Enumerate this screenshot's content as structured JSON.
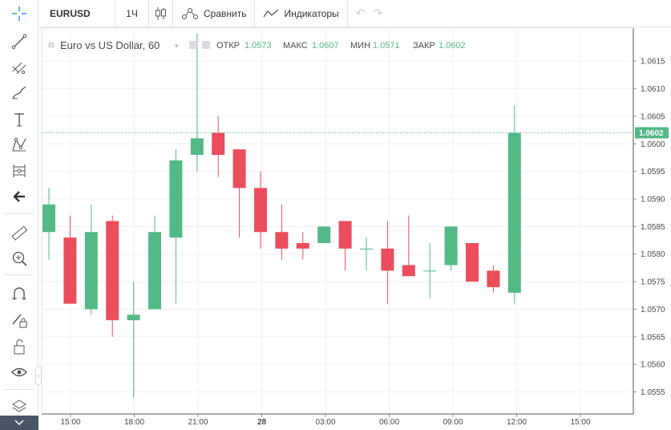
{
  "toolbar": {
    "symbol": "EURUSD",
    "interval": "1Ч",
    "compare_label": "Сравнить",
    "indicators_label": "Индикаторы"
  },
  "sidebar": {
    "tools": [
      "crosshair-icon",
      "trend-line-icon",
      "fib-icon",
      "brush-icon",
      "text-icon",
      "pattern-icon",
      "prediction-icon",
      "back-arrow-icon",
      "ruler-icon",
      "zoom-in-icon",
      "magnet-icon",
      "lock-drawing-icon",
      "unlock-icon",
      "eye-icon",
      "layers-icon"
    ]
  },
  "legend": {
    "title": "Euro vs US Dollar, 60",
    "open_label": "ОТКР",
    "open_value": "1.0573",
    "high_label": "МАКС",
    "high_value": "1.0607",
    "low_label": "МИН",
    "low_value": "1.0571",
    "close_label": "ЗАКР",
    "close_value": "1.0602"
  },
  "colors": {
    "up": "#53b987",
    "down": "#eb4d5c",
    "last_price": "#53b987",
    "grid": "#eef0f3"
  },
  "chart_data": {
    "type": "candlestick",
    "ylim": [
      1.0551,
      1.0621
    ],
    "y_ticks": [
      "1.0615",
      "1.0610",
      "1.0605",
      "1.0600",
      "1.0595",
      "1.0590",
      "1.0585",
      "1.0580",
      "1.0575",
      "1.0570",
      "1.0565",
      "1.0560",
      "1.0555"
    ],
    "x_ticks": [
      "15:00",
      "18:00",
      "21:00",
      "28",
      "03:00",
      "06:00",
      "09:00",
      "12:00",
      "15:00"
    ],
    "last_price": "1.0602",
    "candles": [
      {
        "o": 1.0584,
        "h": 1.0592,
        "l": 1.0579,
        "c": 1.0589
      },
      {
        "o": 1.0583,
        "h": 1.0587,
        "l": 1.0571,
        "c": 1.0571
      },
      {
        "o": 1.057,
        "h": 1.0589,
        "l": 1.0569,
        "c": 1.0584
      },
      {
        "o": 1.0586,
        "h": 1.0587,
        "l": 1.0565,
        "c": 1.0568
      },
      {
        "o": 1.0568,
        "h": 1.0575,
        "l": 1.0554,
        "c": 1.0569
      },
      {
        "o": 1.057,
        "h": 1.0587,
        "l": 1.057,
        "c": 1.0584
      },
      {
        "o": 1.0583,
        "h": 1.0599,
        "l": 1.0571,
        "c": 1.0597
      },
      {
        "o": 1.0598,
        "h": 1.062,
        "l": 1.0595,
        "c": 1.0601
      },
      {
        "o": 1.0602,
        "h": 1.0605,
        "l": 1.0594,
        "c": 1.0598
      },
      {
        "o": 1.0599,
        "h": 1.0599,
        "l": 1.0583,
        "c": 1.0592
      },
      {
        "o": 1.0592,
        "h": 1.0595,
        "l": 1.0581,
        "c": 1.0584
      },
      {
        "o": 1.0584,
        "h": 1.0589,
        "l": 1.0579,
        "c": 1.0581
      },
      {
        "o": 1.0582,
        "h": 1.0584,
        "l": 1.0579,
        "c": 1.0581
      },
      {
        "o": 1.0582,
        "h": 1.0585,
        "l": 1.0582,
        "c": 1.0585
      },
      {
        "o": 1.0586,
        "h": 1.0586,
        "l": 1.0577,
        "c": 1.0581
      },
      {
        "o": 1.0581,
        "h": 1.0583,
        "l": 1.0577,
        "c": 1.0581
      },
      {
        "o": 1.0581,
        "h": 1.0586,
        "l": 1.0571,
        "c": 1.0577
      },
      {
        "o": 1.0578,
        "h": 1.0587,
        "l": 1.0576,
        "c": 1.0576
      },
      {
        "o": 1.0577,
        "h": 1.0582,
        "l": 1.0572,
        "c": 1.0577
      },
      {
        "o": 1.0578,
        "h": 1.0585,
        "l": 1.0577,
        "c": 1.0585
      },
      {
        "o": 1.0582,
        "h": 1.0582,
        "l": 1.0575,
        "c": 1.0575
      },
      {
        "o": 1.0577,
        "h": 1.0578,
        "l": 1.0573,
        "c": 1.0574
      },
      {
        "o": 1.0573,
        "h": 1.0607,
        "l": 1.0571,
        "c": 1.0602
      }
    ]
  }
}
